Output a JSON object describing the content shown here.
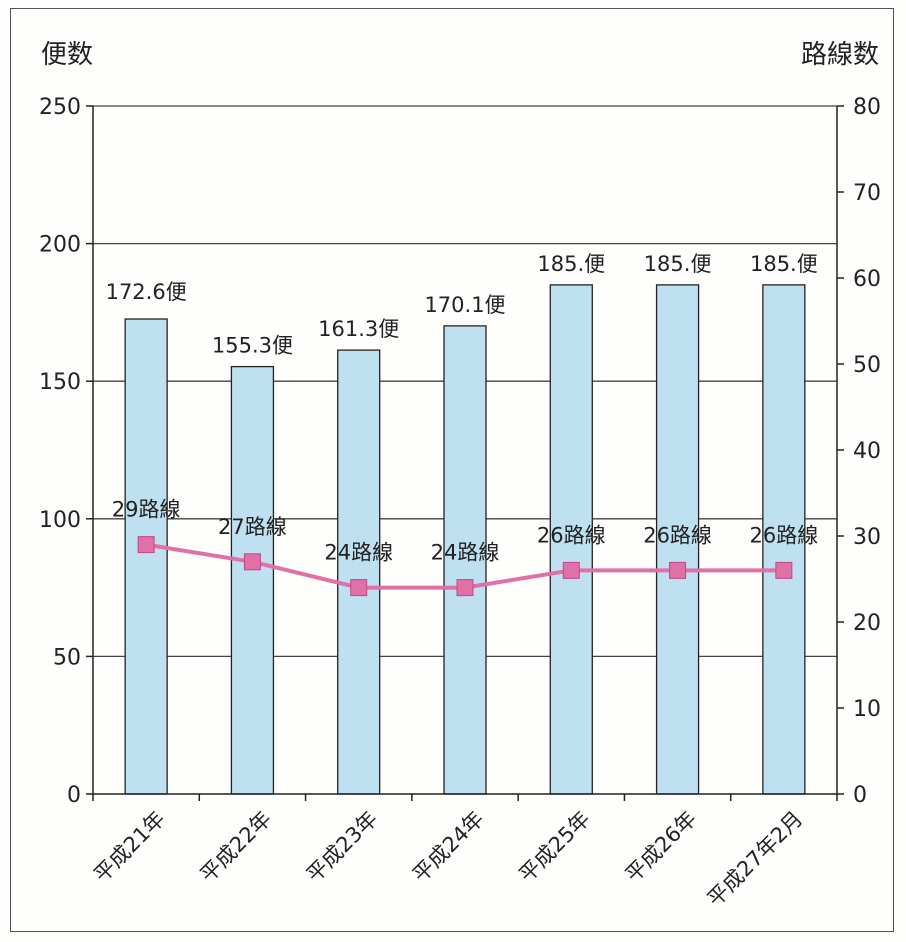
{
  "chart_data": {
    "type": "bar+line",
    "categories": [
      "平成21年",
      "平成22年",
      "平成23年",
      "平成24年",
      "平成25年",
      "平成26年",
      "平成27年2月"
    ],
    "y_left": {
      "label": "便数",
      "min": 0,
      "max": 250,
      "ticks": [
        0,
        50,
        100,
        150,
        200,
        250
      ]
    },
    "y_right": {
      "label": "路線数",
      "min": 0,
      "max": 80,
      "ticks": [
        0,
        10,
        20,
        30,
        40,
        50,
        60,
        70,
        80
      ]
    },
    "series": [
      {
        "type": "bar",
        "axis": "left",
        "values": [
          172.6,
          155.3,
          161.3,
          170.1,
          185,
          185,
          185
        ],
        "labels": [
          "172.6便",
          "155.3便",
          "161.3便",
          "170.1便",
          "185.便",
          "185.便",
          "185.便"
        ],
        "color": "#bfe0f0",
        "stroke": "#222222"
      },
      {
        "type": "line",
        "axis": "right",
        "values": [
          29,
          27,
          24,
          24,
          26,
          26,
          26
        ],
        "labels": [
          "29路線",
          "27路線",
          "24路線",
          "24路線",
          "26路線",
          "26路線",
          "26路線"
        ],
        "color": "#e070a8"
      }
    ],
    "gridlines": "horizontal",
    "legend": "none"
  }
}
